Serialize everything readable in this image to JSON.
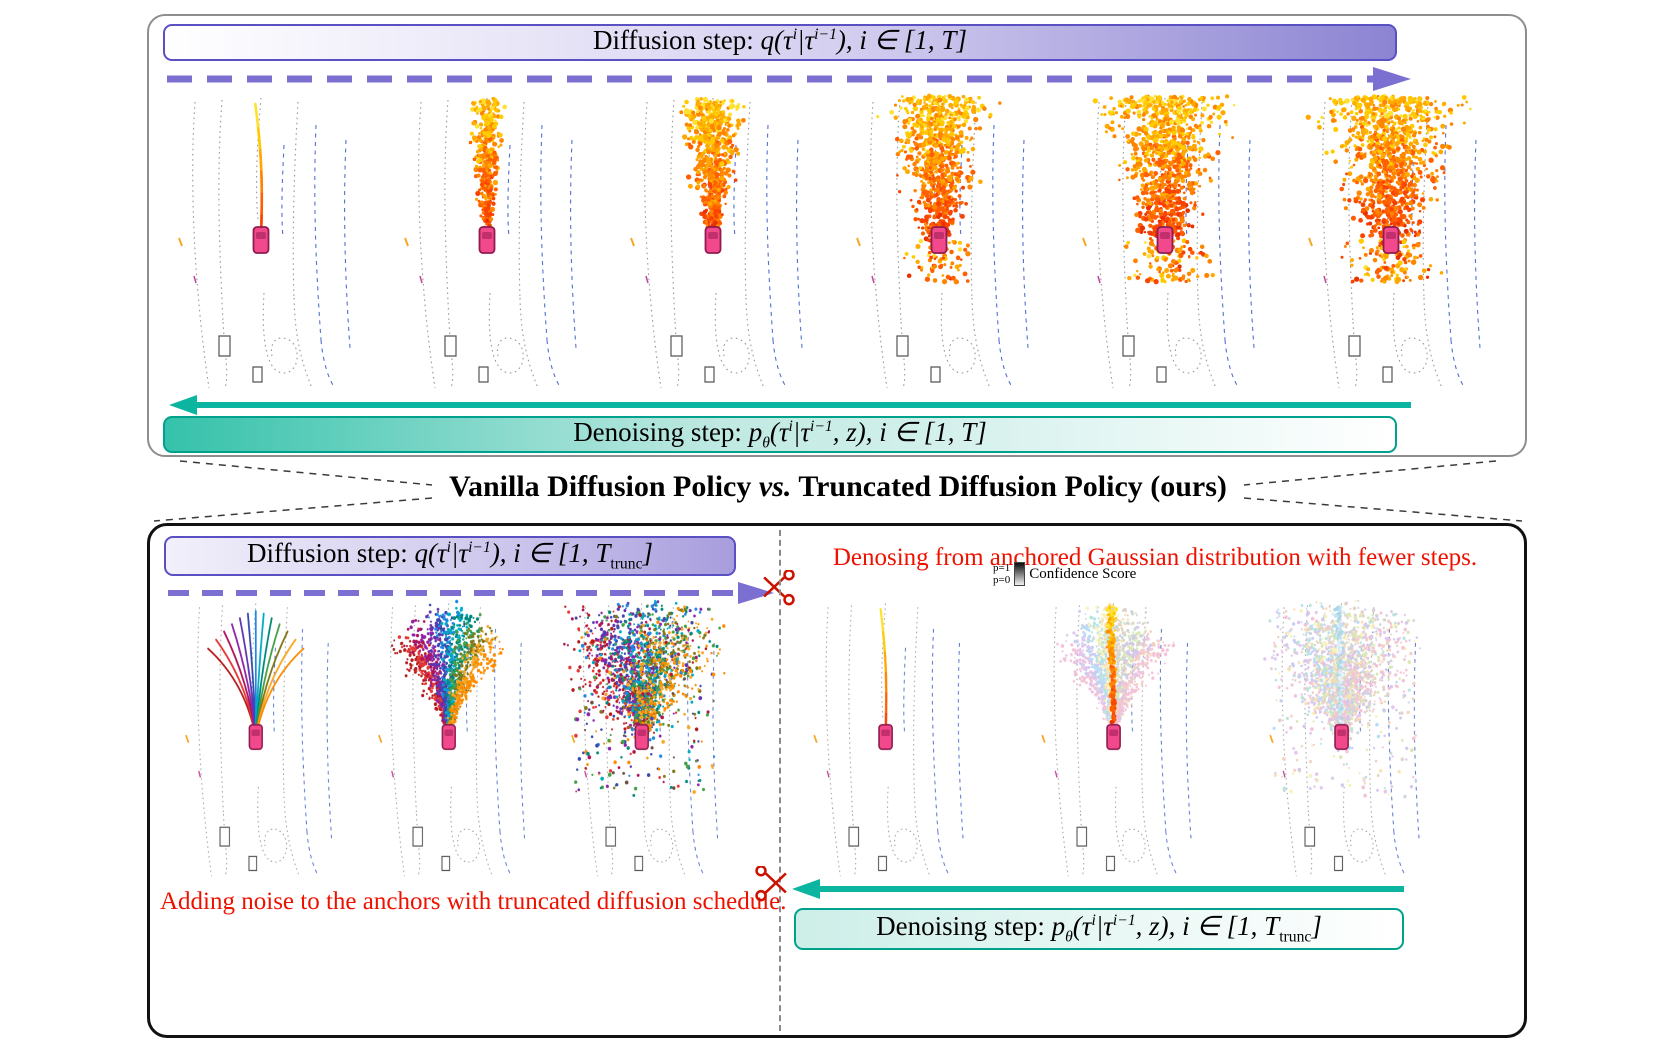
{
  "title": {
    "part_a": "Vanilla Diffusion Policy ",
    "vs": "vs.",
    "part_b": " Truncated Diffusion Policy (ours)"
  },
  "colors": {
    "purple_arrow": "#7b6fd1",
    "teal_arrow": "#0cb5a0",
    "purple_border": "#5b4fc4",
    "teal_border": "#00a18d",
    "red_caption": "#ee1100",
    "scissors_red": "#cc1100",
    "connector_gray": "#3a3a3a"
  },
  "top_box": {
    "diffusion_banner": {
      "prefix": "Diffusion step: ",
      "f": "q(τ",
      "sup_a": "i",
      "mid": "|τ",
      "sup_b": "i−1",
      "tail": "), i ∈ [1, T]"
    },
    "denoising_banner": {
      "prefix": "Denoising step: ",
      "p": "p",
      "theta": "θ",
      "f": "(τ",
      "sup_a": "i",
      "mid": "|τ",
      "sup_b": "i−1",
      "tail": ", z), i ∈ [1, T]"
    }
  },
  "bottom_box": {
    "left": {
      "diffusion_banner": {
        "prefix": "Diffusion step: ",
        "f": "q(τ",
        "sup_a": "i",
        "mid": "|τ",
        "sup_b": "i−1",
        "tail": "), i ∈ [1, T",
        "sub_trunc": "trunc",
        "close": "]"
      },
      "caption": "Adding noise to the anchors with truncated diffusion schedule."
    },
    "right": {
      "caption": "Denosing from anchored Gaussian distribution with fewer steps.",
      "legend": {
        "p1": "p=1",
        "p0": "p=0",
        "label": "Confidence Score"
      },
      "denoising_banner": {
        "prefix": "Denoising step: ",
        "p": "p",
        "theta": "θ",
        "f": "(τ",
        "sup_a": "i",
        "mid": "|τ",
        "sup_b": "i−1",
        "tail": ", z), i ∈ [1, T",
        "sub_trunc": "trunc",
        "close": "]"
      }
    }
  },
  "palettes": {
    "heat": [
      "#ffe133",
      "#ffcb00",
      "#ffa800",
      "#ff8400",
      "#ff5f00",
      "#f94300",
      "#e83000"
    ],
    "anchor": [
      "#b71c1c",
      "#e53935",
      "#ad1457",
      "#8e24aa",
      "#5e35b1",
      "#3949ab",
      "#1e88e5",
      "#00acc1",
      "#00897b",
      "#43a047",
      "#827717",
      "#f9a825",
      "#fb8c00",
      "#6d4c41"
    ],
    "pastel": [
      "#f4c2d7",
      "#e3c6ee",
      "#c9cdf0",
      "#badef5",
      "#b8e6da",
      "#f7f2bb",
      "#f9e0b5",
      "#e2d4c7",
      "#ccd6db",
      "#d9e8b5",
      "#d6c6ec",
      "#f2d2c2"
    ],
    "light": [
      "#c2e2ee",
      "#d9eef6",
      "#aed6e6",
      "#e9f5fa"
    ]
  },
  "map_colors": {
    "lane_gray": "#9a9a9a",
    "lane_blue": "#5470cf",
    "vehicle_outline": "#555555",
    "accent_orange": "#f5a623",
    "accent_magenta": "#c643a0",
    "car_fill": "#f2498c",
    "car_stroke": "#8f1c4e"
  },
  "scenes": [
    {
      "id": "top-1",
      "kind": "traj",
      "seed": 11
    },
    {
      "id": "top-2",
      "kind": "cone",
      "n": 400,
      "spread": 0.22,
      "seed": 21
    },
    {
      "id": "top-3",
      "kind": "cone",
      "n": 680,
      "spread": 0.42,
      "seed": 31
    },
    {
      "id": "top-4",
      "kind": "cloud",
      "n": 900,
      "spread": 0.62,
      "seed": 41
    },
    {
      "id": "top-5",
      "kind": "cloud",
      "n": 1000,
      "spread": 0.78,
      "seed": 51
    },
    {
      "id": "top-6",
      "kind": "cloud",
      "n": 1100,
      "spread": 0.92,
      "seed": 61
    },
    {
      "id": "bl-1",
      "kind": "anchors",
      "seed": 71
    },
    {
      "id": "bl-2",
      "kind": "anchor-cone",
      "n": 1600,
      "spread": 0.5,
      "seed": 81
    },
    {
      "id": "bl-3",
      "kind": "anchor-cloud",
      "n": 1900,
      "spread": 1.0,
      "seed": 91
    },
    {
      "id": "br-1",
      "kind": "traj",
      "seed": 101
    },
    {
      "id": "br-2",
      "kind": "pastel-cone",
      "n": 1500,
      "spread": 0.55,
      "seed": 111
    },
    {
      "id": "br-3",
      "kind": "pastel-cloud",
      "n": 1700,
      "spread": 0.9,
      "seed": 121
    }
  ]
}
